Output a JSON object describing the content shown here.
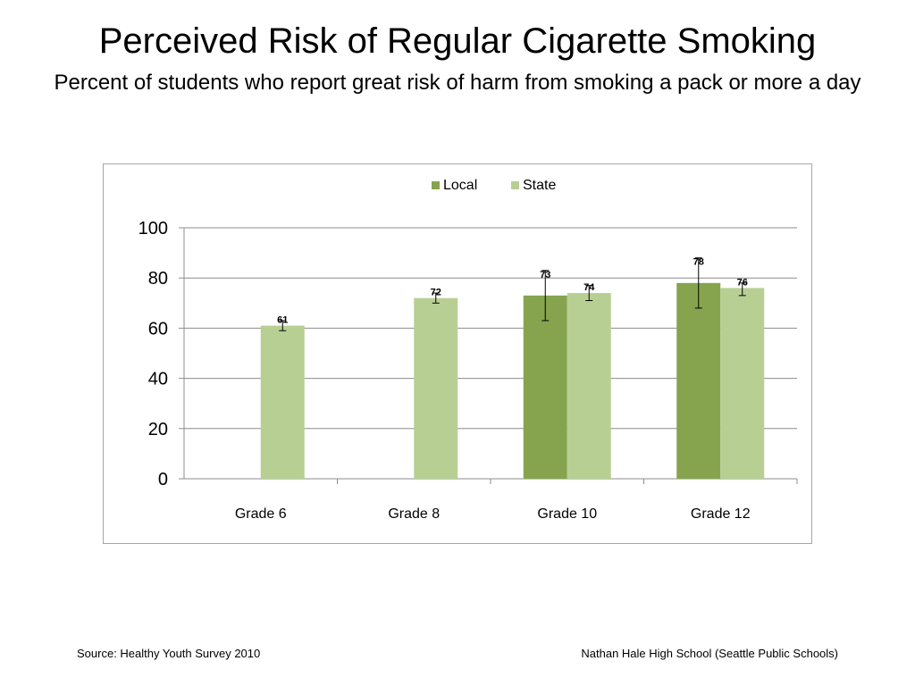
{
  "title": "Perceived Risk of Regular Cigarette Smoking",
  "subtitle": "Percent of students who report great risk of harm from smoking a pack or more a day",
  "footer": {
    "source": "Source: Healthy Youth Survey 2010",
    "school": "Nathan Hale High School (Seattle Public Schools)"
  },
  "colors": {
    "local": "#86a44e",
    "state": "#b8cf94",
    "grid": "#8c8c8c",
    "error": "#000000"
  },
  "chart_data": {
    "type": "bar",
    "categories": [
      "Grade 6",
      "Grade 8",
      "Grade 10",
      "Grade 12"
    ],
    "series": [
      {
        "name": "Local",
        "values": [
          null,
          null,
          73,
          78
        ],
        "error": [
          null,
          null,
          [
            63,
            83
          ],
          [
            68,
            88
          ]
        ]
      },
      {
        "name": "State",
        "values": [
          61,
          72,
          74,
          76
        ],
        "error": [
          [
            59,
            63
          ],
          [
            70,
            74
          ],
          [
            71,
            77
          ],
          [
            73,
            78
          ]
        ]
      }
    ],
    "ylim": [
      0,
      100
    ],
    "yticks": [
      0,
      20,
      40,
      60,
      80,
      100
    ],
    "grid": true,
    "legend": "top-center",
    "data_labels": true
  }
}
